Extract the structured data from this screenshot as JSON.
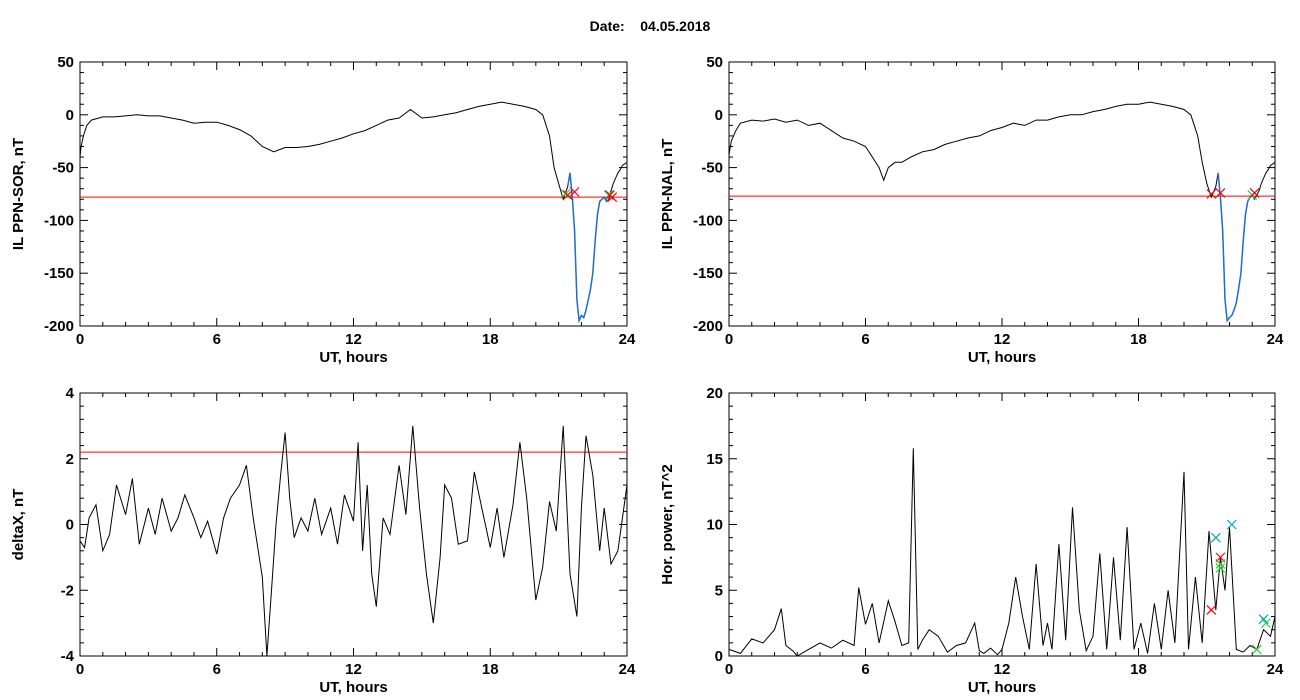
{
  "figure": {
    "date_label": "Date:",
    "date_value": "04.05.2018"
  },
  "colors": {
    "threshold": "#ff0000",
    "storm": "#1f6fd1",
    "cross_red": "#ff0000",
    "cross_green": "#2ecc40",
    "cross_cyan": "#00a8b5",
    "trace": "#000000"
  },
  "chart_data": [
    {
      "type": "line",
      "ylabel": "IL PPN-SOR, nT",
      "xlabel": "UT, hours",
      "xlim": [
        0,
        24
      ],
      "ylim": [
        -200,
        50
      ],
      "xticks": [
        0,
        6,
        12,
        18,
        24
      ],
      "yticks": [
        -200,
        -150,
        -100,
        -50,
        0,
        50
      ],
      "threshold": -78,
      "series": [
        {
          "x": [
            0,
            0.05,
            0.15,
            0.3,
            0.5,
            1,
            1.5,
            2,
            2.5,
            3,
            3.5,
            4,
            4.5,
            5,
            5.5,
            6,
            6.5,
            7,
            7.5,
            8,
            8.5,
            9,
            9.5,
            10,
            10.5,
            11,
            11.5,
            12,
            12.5,
            13,
            13.5,
            14,
            14.5,
            15,
            15.5,
            16,
            16.5,
            17,
            17.5,
            18,
            18.5,
            19,
            19.5,
            20,
            20.3,
            20.6,
            20.8,
            21,
            21.2,
            21.4,
            21.5,
            21.6,
            21.7,
            21.8,
            21.9,
            22.0,
            22.1,
            22.2,
            22.3,
            22.4,
            22.5,
            22.6,
            22.7,
            22.8,
            22.9,
            23.0,
            23.1,
            23.2,
            23.3,
            23.4,
            23.5,
            23.6,
            23.7,
            23.8,
            24
          ],
          "y": [
            -40,
            -30,
            -20,
            -10,
            -5,
            -2,
            -2,
            -1,
            0,
            -1,
            -1,
            -3,
            -5,
            -8,
            -7,
            -7,
            -10,
            -14,
            -20,
            -30,
            -35,
            -31,
            -31,
            -30,
            -28,
            -25,
            -22,
            -18,
            -15,
            -10,
            -5,
            -3,
            5,
            -3,
            -2,
            0,
            2,
            5,
            8,
            10,
            12,
            10,
            8,
            5,
            0,
            -20,
            -50,
            -65,
            -80,
            -68,
            -55,
            -78,
            -110,
            -175,
            -195,
            -190,
            -192,
            -185,
            -175,
            -165,
            -150,
            -120,
            -95,
            -82,
            -80,
            -78,
            -82,
            -80,
            -72,
            -65,
            -60,
            -55,
            -52,
            -48,
            -45
          ]
        }
      ],
      "storm_range": [
        21.4,
        23.2
      ],
      "markers": [
        {
          "x": 21.3,
          "y": -75,
          "color": "cross_green"
        },
        {
          "x": 21.4,
          "y": -76,
          "color": "cross_red"
        },
        {
          "x": 21.7,
          "y": -73,
          "color": "cross_red"
        },
        {
          "x": 23.2,
          "y": -76,
          "color": "cross_green"
        },
        {
          "x": 23.25,
          "y": -76,
          "color": "cross_red"
        },
        {
          "x": 23.35,
          "y": -78,
          "color": "cross_red"
        }
      ]
    },
    {
      "type": "line",
      "ylabel": "IL PPN-NAL, nT",
      "xlabel": "UT, hours",
      "xlim": [
        0,
        24
      ],
      "ylim": [
        -200,
        50
      ],
      "xticks": [
        0,
        6,
        12,
        18,
        24
      ],
      "yticks": [
        -200,
        -150,
        -100,
        -50,
        0,
        50
      ],
      "threshold": -77,
      "series": [
        {
          "x": [
            0,
            0.1,
            0.3,
            0.5,
            1,
            1.5,
            2,
            2.5,
            3,
            3.5,
            4,
            4.5,
            5,
            5.5,
            6,
            6.3,
            6.6,
            6.8,
            7,
            7.3,
            7.6,
            8,
            8.5,
            9,
            9.5,
            10,
            10.5,
            11,
            11.5,
            12,
            12.5,
            13,
            13.5,
            14,
            14.5,
            15,
            15.5,
            16,
            16.5,
            17,
            17.5,
            18,
            18.5,
            19,
            19.5,
            20,
            20.3,
            20.6,
            20.8,
            21,
            21.2,
            21.4,
            21.5,
            21.6,
            21.7,
            21.8,
            21.9,
            22.0,
            22.1,
            22.2,
            22.3,
            22.4,
            22.5,
            22.6,
            22.7,
            22.8,
            22.9,
            23.0,
            23.1,
            23.2,
            23.3,
            23.4,
            23.5,
            23.6,
            23.7,
            23.8,
            24
          ],
          "y": [
            -38,
            -25,
            -15,
            -8,
            -5,
            -6,
            -4,
            -7,
            -5,
            -10,
            -8,
            -15,
            -22,
            -25,
            -30,
            -40,
            -50,
            -62,
            -50,
            -45,
            -45,
            -40,
            -35,
            -33,
            -28,
            -25,
            -22,
            -20,
            -15,
            -12,
            -8,
            -10,
            -5,
            -5,
            -2,
            0,
            0,
            3,
            5,
            8,
            10,
            10,
            12,
            10,
            8,
            5,
            0,
            -20,
            -45,
            -65,
            -78,
            -68,
            -55,
            -78,
            -110,
            -175,
            -195,
            -192,
            -190,
            -185,
            -178,
            -165,
            -150,
            -120,
            -95,
            -82,
            -78,
            -76,
            -80,
            -76,
            -72,
            -65,
            -60,
            -55,
            -52,
            -48,
            -45
          ]
        }
      ],
      "storm_range": [
        21.5,
        23.1
      ],
      "markers": [
        {
          "x": 21.2,
          "y": -75,
          "color": "cross_red"
        },
        {
          "x": 21.6,
          "y": -74,
          "color": "cross_red"
        },
        {
          "x": 23.0,
          "y": -76,
          "color": "cross_green"
        },
        {
          "x": 23.1,
          "y": -74,
          "color": "cross_red"
        }
      ]
    },
    {
      "type": "line",
      "ylabel": "deltaX, nT",
      "xlabel": "UT, hours",
      "xlim": [
        0,
        24
      ],
      "ylim": [
        -4,
        4
      ],
      "xticks": [
        0,
        6,
        12,
        18,
        24
      ],
      "yticks": [
        -4,
        -2,
        0,
        2,
        4
      ],
      "threshold": 2.2,
      "series": [
        {
          "x": [
            0,
            0.2,
            0.4,
            0.7,
            1,
            1.3,
            1.6,
            2,
            2.3,
            2.6,
            3,
            3.3,
            3.6,
            4,
            4.3,
            4.6,
            5,
            5.3,
            5.6,
            6,
            6.3,
            6.6,
            7,
            7.3,
            7.6,
            8,
            8.2,
            8.4,
            8.6,
            8.8,
            9,
            9.2,
            9.4,
            9.7,
            10,
            10.3,
            10.6,
            11,
            11.3,
            11.6,
            12,
            12.2,
            12.4,
            12.6,
            12.8,
            13,
            13.3,
            13.6,
            14,
            14.3,
            14.6,
            14.9,
            15.2,
            15.5,
            15.8,
            16,
            16.3,
            16.6,
            17,
            17.3,
            17.6,
            18,
            18.3,
            18.6,
            19,
            19.3,
            19.6,
            20,
            20.3,
            20.6,
            20.9,
            21.2,
            21.5,
            21.8,
            22,
            22.2,
            22.5,
            22.8,
            23,
            23.3,
            23.6,
            24
          ],
          "y": [
            -0.5,
            -0.7,
            0.2,
            0.6,
            -0.8,
            -0.3,
            1.2,
            0.3,
            1.4,
            -0.6,
            0.5,
            -0.3,
            0.8,
            -0.2,
            0.2,
            0.9,
            0.2,
            -0.4,
            0.1,
            -0.9,
            0.2,
            0.8,
            1.2,
            1.8,
            0.2,
            -1.6,
            -4.0,
            -2.0,
            0.0,
            1.5,
            2.8,
            0.8,
            -0.4,
            0.2,
            -0.2,
            0.8,
            -0.3,
            0.5,
            -0.6,
            0.9,
            0.1,
            2.5,
            -0.8,
            1.2,
            -1.5,
            -2.5,
            0.2,
            -0.3,
            1.8,
            0.3,
            3.0,
            0.5,
            -1.5,
            -3.0,
            -1.0,
            1.2,
            0.8,
            -0.6,
            -0.5,
            1.6,
            0.6,
            -0.7,
            0.5,
            -1.0,
            0.6,
            2.5,
            0.8,
            -2.3,
            -1.3,
            0.7,
            -0.2,
            3.0,
            -1.5,
            -2.8,
            0.5,
            2.7,
            1.5,
            -0.8,
            0.5,
            -1.2,
            -0.8,
            1.2
          ]
        }
      ]
    },
    {
      "type": "line",
      "ylabel": "Hor. power, nT^2",
      "xlabel": "UT, hours",
      "xlim": [
        0,
        24
      ],
      "ylim": [
        0,
        20
      ],
      "xticks": [
        0,
        6,
        12,
        18,
        24
      ],
      "yticks": [
        0,
        5,
        10,
        15,
        20
      ],
      "series": [
        {
          "x": [
            0,
            0.5,
            1,
            1.5,
            2,
            2.3,
            2.5,
            2.8,
            3,
            3.5,
            4,
            4.5,
            5,
            5.5,
            5.7,
            6,
            6.3,
            6.6,
            7,
            7.3,
            7.6,
            7.9,
            8.1,
            8.3,
            8.5,
            8.8,
            9.2,
            9.6,
            10,
            10.4,
            10.8,
            11,
            11.2,
            11.5,
            11.8,
            12,
            12.3,
            12.6,
            12.9,
            13.2,
            13.5,
            13.8,
            14,
            14.2,
            14.5,
            14.8,
            15.1,
            15.4,
            15.7,
            16,
            16.3,
            16.6,
            16.9,
            17.2,
            17.5,
            17.8,
            18.1,
            18.4,
            18.7,
            19,
            19.3,
            19.6,
            20,
            20.2,
            20.5,
            20.8,
            21.1,
            21.4,
            21.6,
            21.8,
            22,
            22.3,
            22.6,
            22.9,
            23.2,
            23.5,
            23.8,
            24
          ],
          "y": [
            0.5,
            0.2,
            1.3,
            1.0,
            2.0,
            3.6,
            0.8,
            0.4,
            0,
            0.5,
            1.0,
            0.6,
            1.2,
            0.8,
            5.2,
            2.4,
            4.0,
            1.0,
            4.2,
            2.6,
            0.8,
            1.0,
            15.8,
            0.5,
            1.2,
            2.0,
            1.5,
            0.3,
            0.8,
            1.0,
            2.5,
            0.4,
            0.2,
            0.6,
            0.1,
            0.5,
            2.5,
            6.0,
            3.0,
            0.5,
            7.0,
            0.8,
            2.5,
            0.5,
            8.5,
            1.2,
            11.3,
            3.5,
            0.4,
            1.5,
            7.8,
            0.5,
            7.5,
            1.2,
            9.8,
            0.5,
            2.5,
            0.2,
            4.0,
            0.5,
            5.0,
            1.0,
            14.0,
            0.5,
            6.0,
            1.0,
            9.5,
            3.5,
            7.5,
            5.0,
            9.8,
            0.5,
            0.3,
            0.8,
            0.5,
            2.0,
            1.5,
            3.0
          ]
        }
      ],
      "markers": [
        {
          "x": 21.2,
          "y": 3.5,
          "color": "cross_red"
        },
        {
          "x": 21.4,
          "y": 9.0,
          "color": "cross_cyan"
        },
        {
          "x": 21.6,
          "y": 7.5,
          "color": "cross_red"
        },
        {
          "x": 21.6,
          "y": 7.0,
          "color": "cross_green"
        },
        {
          "x": 21.6,
          "y": 6.7,
          "color": "cross_green"
        },
        {
          "x": 22.1,
          "y": 10.0,
          "color": "cross_cyan"
        },
        {
          "x": 23.2,
          "y": 0.5,
          "color": "cross_green"
        },
        {
          "x": 23.5,
          "y": 2.8,
          "color": "cross_cyan"
        },
        {
          "x": 23.6,
          "y": 2.5,
          "color": "cross_green"
        }
      ]
    }
  ]
}
